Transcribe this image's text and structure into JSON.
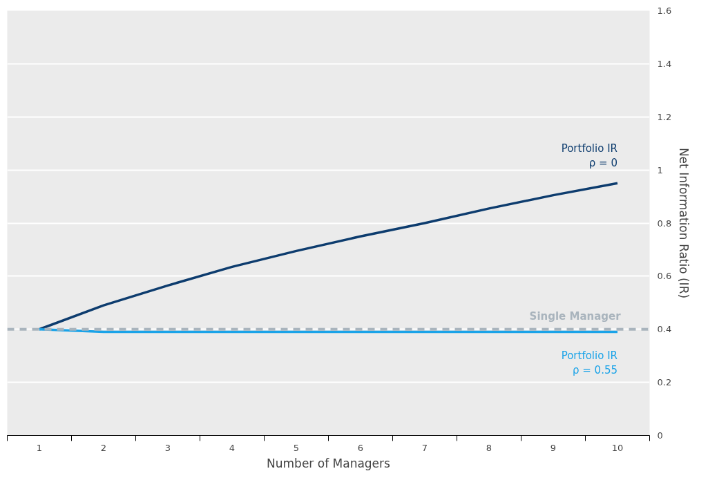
{
  "chart_data": {
    "type": "line",
    "xlabel": "Number of Managers",
    "ylabel": "Net Information Ratio (IR)",
    "x": [
      1,
      2,
      3,
      4,
      5,
      6,
      7,
      8,
      9,
      10
    ],
    "xlim": [
      0.5,
      10.5
    ],
    "xticks": [
      1,
      2,
      3,
      4,
      5,
      6,
      7,
      8,
      9,
      10
    ],
    "ylim": [
      0,
      1.6
    ],
    "yticks": [
      0,
      0.2,
      0.4,
      0.6,
      0.8,
      1,
      1.2,
      1.4,
      1.6
    ],
    "grid": "y",
    "marker": "none",
    "line_style": "solid",
    "series": [
      {
        "name": "Portfolio IR\nρ = 0",
        "color": "#0d3c6e",
        "values": [
          0.4,
          0.49,
          0.565,
          0.635,
          0.695,
          0.75,
          0.8,
          0.855,
          0.905,
          0.95
        ]
      },
      {
        "name": "Portfolio IR\nρ = 0.55",
        "color": "#1aa3e8",
        "values": [
          0.4,
          0.39,
          0.39,
          0.39,
          0.39,
          0.39,
          0.39,
          0.39,
          0.39,
          0.39
        ]
      }
    ],
    "ref_lines": [
      {
        "axis": "y",
        "value": 0.4,
        "label": "Single Manager",
        "color": "#a9b4bd",
        "line_style": "dashed"
      }
    ]
  }
}
